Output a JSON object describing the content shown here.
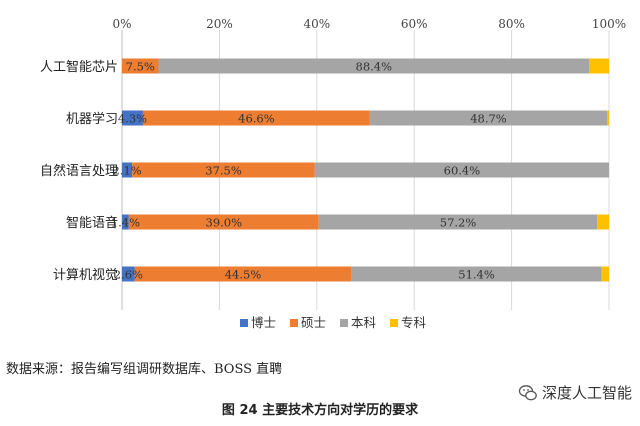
{
  "chart_data": {
    "type": "bar",
    "orientation": "horizontal",
    "stacked": true,
    "categories": [
      "人工智能芯片",
      "机器学习",
      "自然语言处理",
      "智能语音",
      "计算机视觉"
    ],
    "series": [
      {
        "name": "博士",
        "color": "#4472C4",
        "values": [
          0,
          4.3,
          2.1,
          1.4,
          2.6
        ],
        "labels": [
          "",
          "4.3%",
          "2.1%",
          "1.4%",
          "2.6%"
        ]
      },
      {
        "name": "硕士",
        "color": "#ED7D31",
        "values": [
          7.5,
          46.6,
          37.5,
          39.0,
          44.5
        ],
        "labels": [
          "7.5%",
          "46.6%",
          "37.5%",
          "39.0%",
          "44.5%"
        ]
      },
      {
        "name": "本科",
        "color": "#A5A5A5",
        "values": [
          88.4,
          48.7,
          60.4,
          57.2,
          51.4
        ],
        "labels": [
          "88.4%",
          "48.7%",
          "60.4%",
          "57.2%",
          "51.4%"
        ]
      },
      {
        "name": "专科",
        "color": "#FFC000",
        "values": [
          4.1,
          0.4,
          0,
          2.4,
          1.5
        ],
        "labels": [
          "",
          "",
          "",
          "",
          ""
        ]
      }
    ],
    "x_ticks": [
      "0%",
      "20%",
      "40%",
      "60%",
      "80%",
      "100%"
    ],
    "xlim": [
      0,
      100
    ],
    "axis_position": "top",
    "legend_position": "bottom",
    "grid": true
  },
  "source_note": "数据来源：报告编写组调研数据库、BOSS 直聘",
  "caption": "图 24  主要技术方向对学历的要求",
  "watermark": {
    "text": "深度人工智能",
    "icon": "wechat-icon"
  }
}
